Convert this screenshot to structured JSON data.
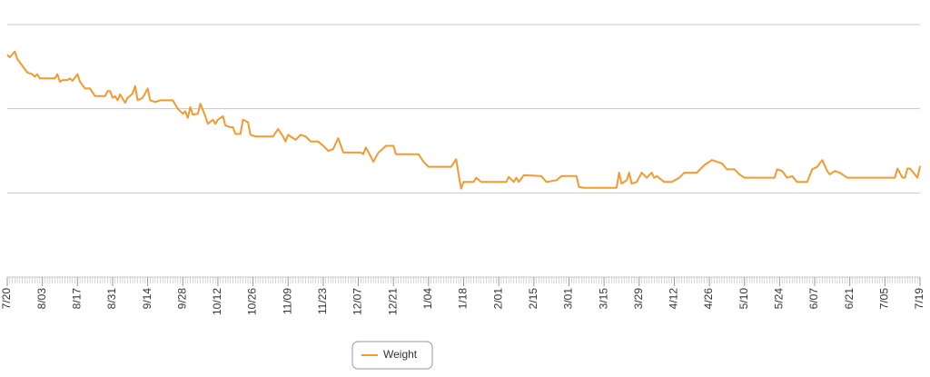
{
  "chart_data": {
    "type": "line",
    "xlim": [
      0,
      364
    ],
    "ylim": [
      0,
      3
    ],
    "yticks": [
      0,
      1,
      2,
      3
    ],
    "grid": true,
    "xticks": [
      {
        "value": 0,
        "label": "7/20"
      },
      {
        "value": 14,
        "label": "8/03"
      },
      {
        "value": 28,
        "label": "8/17"
      },
      {
        "value": 42,
        "label": "8/31"
      },
      {
        "value": 56,
        "label": "9/14"
      },
      {
        "value": 70,
        "label": "9/28"
      },
      {
        "value": 84,
        "label": "10/12"
      },
      {
        "value": 98,
        "label": "10/26"
      },
      {
        "value": 112,
        "label": "11/09"
      },
      {
        "value": 126,
        "label": "11/23"
      },
      {
        "value": 140,
        "label": "12/07"
      },
      {
        "value": 154,
        "label": "12/21"
      },
      {
        "value": 168,
        "label": "1/04"
      },
      {
        "value": 182,
        "label": "1/18"
      },
      {
        "value": 196,
        "label": "2/01"
      },
      {
        "value": 210,
        "label": "2/15"
      },
      {
        "value": 224,
        "label": "3/01"
      },
      {
        "value": 238,
        "label": "3/15"
      },
      {
        "value": 252,
        "label": "3/29"
      },
      {
        "value": 266,
        "label": "4/12"
      },
      {
        "value": 280,
        "label": "4/26"
      },
      {
        "value": 294,
        "label": "5/10"
      },
      {
        "value": 308,
        "label": "5/24"
      },
      {
        "value": 322,
        "label": "6/07"
      },
      {
        "value": 336,
        "label": "6/21"
      },
      {
        "value": 350,
        "label": "7/05"
      },
      {
        "value": 364,
        "label": "7/19"
      }
    ],
    "legend": "bottom",
    "series": [
      {
        "name": "Weight",
        "color": "#f39a30",
        "x": [
          0,
          1,
          3,
          4,
          6,
          8,
          10,
          11,
          12,
          13,
          15,
          17,
          19,
          20,
          21,
          22,
          24,
          25,
          26,
          28,
          29,
          31,
          33,
          35,
          37,
          39,
          40,
          41,
          42,
          43,
          44,
          45,
          47,
          48,
          50,
          51,
          52,
          54,
          56,
          57,
          59,
          61,
          66,
          68,
          70,
          71,
          72,
          73,
          74,
          76,
          77,
          79,
          80,
          82,
          83,
          84,
          86,
          87,
          89,
          90,
          91,
          93,
          94,
          96,
          97,
          99,
          106,
          108,
          110,
          111,
          112,
          113,
          115,
          117,
          119,
          121,
          122,
          124,
          126,
          128,
          130,
          131,
          132,
          134,
          137,
          141,
          142,
          143,
          145,
          146,
          148,
          150,
          151,
          154,
          155,
          164,
          166,
          168,
          177,
          179,
          180,
          181,
          182,
          186,
          187,
          189,
          199,
          200,
          202,
          203,
          204,
          206,
          213,
          215,
          219,
          221,
          227,
          228,
          230,
          243,
          244,
          245,
          247,
          248,
          249,
          251,
          253,
          255,
          257,
          258,
          259,
          262,
          265,
          268,
          270,
          275,
          278,
          280,
          281,
          285,
          287,
          290,
          292,
          294,
          306,
          307,
          309,
          311,
          313,
          315,
          319,
          321,
          323,
          325,
          327,
          328,
          330,
          332,
          335,
          354,
          355,
          357,
          358,
          359,
          360,
          363,
          364
        ],
        "values": [
          2.64,
          2.61,
          2.68,
          2.59,
          2.51,
          2.43,
          2.41,
          2.38,
          2.41,
          2.36,
          2.36,
          2.36,
          2.36,
          2.41,
          2.32,
          2.34,
          2.34,
          2.36,
          2.33,
          2.41,
          2.32,
          2.24,
          2.24,
          2.15,
          2.15,
          2.15,
          2.21,
          2.21,
          2.13,
          2.15,
          2.1,
          2.17,
          2.07,
          2.13,
          2.18,
          2.27,
          2.1,
          2.13,
          2.24,
          2.1,
          2.08,
          2.1,
          2.1,
          2.0,
          1.94,
          1.97,
          1.89,
          2.02,
          1.93,
          1.94,
          2.06,
          1.91,
          1.82,
          1.87,
          1.82,
          1.87,
          1.91,
          1.8,
          1.78,
          1.78,
          1.7,
          1.7,
          1.87,
          1.84,
          1.69,
          1.67,
          1.67,
          1.76,
          1.67,
          1.61,
          1.69,
          1.67,
          1.63,
          1.69,
          1.67,
          1.61,
          1.61,
          1.61,
          1.56,
          1.5,
          1.52,
          1.59,
          1.65,
          1.48,
          1.48,
          1.48,
          1.46,
          1.54,
          1.43,
          1.37,
          1.48,
          1.53,
          1.56,
          1.56,
          1.46,
          1.46,
          1.37,
          1.31,
          1.31,
          1.4,
          1.22,
          1.05,
          1.13,
          1.13,
          1.18,
          1.13,
          1.13,
          1.19,
          1.13,
          1.18,
          1.13,
          1.21,
          1.2,
          1.13,
          1.15,
          1.2,
          1.2,
          1.07,
          1.06,
          1.06,
          1.24,
          1.11,
          1.15,
          1.24,
          1.11,
          1.13,
          1.24,
          1.18,
          1.24,
          1.18,
          1.2,
          1.13,
          1.13,
          1.18,
          1.24,
          1.24,
          1.33,
          1.37,
          1.39,
          1.35,
          1.28,
          1.28,
          1.22,
          1.18,
          1.18,
          1.28,
          1.26,
          1.18,
          1.2,
          1.13,
          1.13,
          1.28,
          1.31,
          1.39,
          1.26,
          1.22,
          1.26,
          1.24,
          1.18,
          1.18,
          1.29,
          1.18,
          1.18,
          1.29,
          1.29,
          1.18,
          1.32
        ]
      }
    ]
  }
}
